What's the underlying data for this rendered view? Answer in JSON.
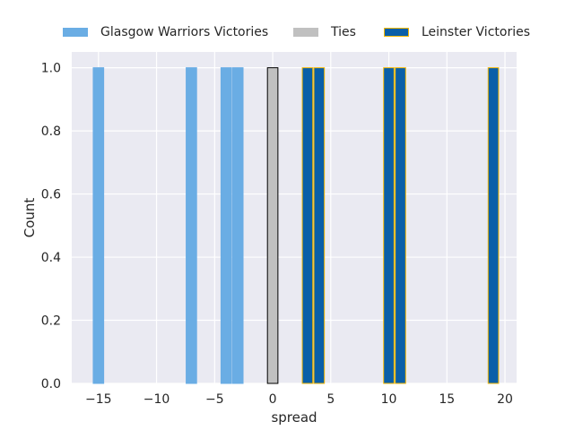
{
  "chart_data": {
    "type": "bar",
    "xlabel": "spread",
    "ylabel": "Count",
    "xlim": [
      -17.3,
      21.0
    ],
    "ylim": [
      0,
      1.05
    ],
    "xticks": [
      -15,
      -10,
      -5,
      0,
      5,
      10,
      15,
      20
    ],
    "xtick_labels": [
      "−15",
      "−10",
      "−5",
      "0",
      "5",
      "10",
      "15",
      "20"
    ],
    "yticks": [
      0.0,
      0.2,
      0.4,
      0.6,
      0.8,
      1.0
    ],
    "ytick_labels": [
      "0.0",
      "0.2",
      "0.4",
      "0.6",
      "0.8",
      "1.0"
    ],
    "bar_width": 0.9,
    "grid": true,
    "legend_position": "top",
    "background": "#eaeaf2",
    "series": [
      {
        "name": "Glasgow Warriors Victories",
        "color": "#6aade4",
        "edge": "#6aade4",
        "bars": [
          {
            "x": -15,
            "count": 1
          },
          {
            "x": -7,
            "count": 1
          },
          {
            "x": -4,
            "count": 1
          },
          {
            "x": -3,
            "count": 1
          }
        ]
      },
      {
        "name": "Ties",
        "color": "#c0c0c0",
        "edge": "#000000",
        "bars": [
          {
            "x": 0,
            "count": 1
          }
        ]
      },
      {
        "name": "Leinster Victories",
        "color": "#0a5fa8",
        "edge": "#f2b705",
        "bars": [
          {
            "x": 3,
            "count": 1
          },
          {
            "x": 4,
            "count": 1
          },
          {
            "x": 10,
            "count": 1
          },
          {
            "x": 11,
            "count": 1
          },
          {
            "x": 19,
            "count": 1
          }
        ]
      }
    ]
  }
}
